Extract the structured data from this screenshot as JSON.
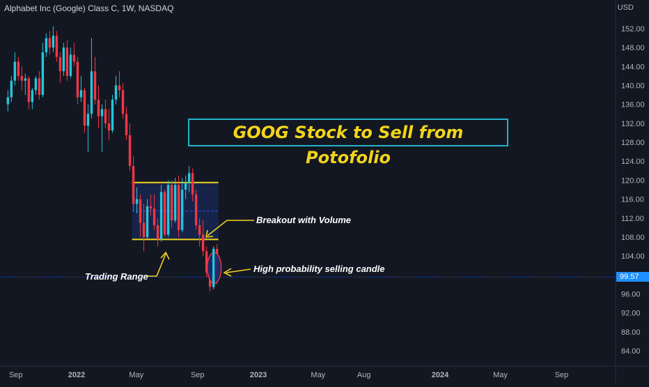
{
  "header": {
    "title": "Alphabet Inc (Google) Class C, 1W, NASDAQ",
    "currency": "USD"
  },
  "last_price_label": "99.57",
  "annotations": {
    "title": "GOOG Stock to Sell from Potofolio",
    "breakout": "Breakout with Volume",
    "selling_candle": "High probability selling candle",
    "range": "Trading Range"
  },
  "colors": {
    "background": "#131722",
    "up": "#26c6da",
    "down": "#f23645",
    "range_line": "#f2d41c",
    "range_fill": "#1a2a57",
    "arrow": "#f2d41c",
    "title_border": "#22b3c9",
    "title_text": "#f2d41c",
    "price_tag": "#1e90ff"
  },
  "chart_data": {
    "type": "candlestick",
    "title": "Alphabet Inc (Google) Class C, 1W, NASDAQ",
    "ylim": [
      80,
      156
    ],
    "y_ticks": [
      "152.00",
      "148.00",
      "144.00",
      "140.00",
      "136.00",
      "132.00",
      "128.00",
      "124.00",
      "120.00",
      "116.00",
      "112.00",
      "108.00",
      "104.00",
      "100.00",
      "96.00",
      "92.00",
      "88.00",
      "84.00"
    ],
    "y_tick_values": [
      152,
      148,
      144,
      140,
      136,
      132,
      128,
      124,
      120,
      116,
      112,
      108,
      104,
      100,
      96,
      92,
      88,
      84
    ],
    "x_ticks": [
      "Sep",
      "2022",
      "May",
      "Sep",
      "2023",
      "May",
      "Aug",
      "2024",
      "May",
      "Sep"
    ],
    "x_tick_dates": [
      "2021-09-01",
      "2022-01-01",
      "2022-05-01",
      "2022-09-01",
      "2023-01-01",
      "2023-05-01",
      "2023-08-01",
      "2024-01-01",
      "2024-05-01",
      "2024-09-01"
    ],
    "last_price": 99.57,
    "trading_range": {
      "high": 119.5,
      "low": 107.5,
      "mid": 113.5,
      "start": "2022-04-25",
      "end": "2022-10-10"
    },
    "candles": [
      {
        "date": "2021-08-16",
        "o": 136.0,
        "h": 139.0,
        "l": 134.5,
        "c": 137.5
      },
      {
        "date": "2021-08-23",
        "o": 137.5,
        "h": 142.0,
        "l": 136.5,
        "c": 141.0
      },
      {
        "date": "2021-08-30",
        "o": 141.0,
        "h": 147.0,
        "l": 140.0,
        "c": 145.0
      },
      {
        "date": "2021-09-06",
        "o": 145.0,
        "h": 146.0,
        "l": 141.0,
        "c": 142.0
      },
      {
        "date": "2021-09-13",
        "o": 142.0,
        "h": 144.0,
        "l": 139.0,
        "c": 141.0
      },
      {
        "date": "2021-09-20",
        "o": 141.0,
        "h": 142.5,
        "l": 138.0,
        "c": 141.5
      },
      {
        "date": "2021-09-27",
        "o": 141.5,
        "h": 142.0,
        "l": 135.0,
        "c": 136.5
      },
      {
        "date": "2021-10-04",
        "o": 136.5,
        "h": 139.5,
        "l": 135.0,
        "c": 139.0
      },
      {
        "date": "2021-10-11",
        "o": 139.0,
        "h": 142.0,
        "l": 138.0,
        "c": 141.5
      },
      {
        "date": "2021-10-18",
        "o": 141.5,
        "h": 143.0,
        "l": 137.0,
        "c": 138.0
      },
      {
        "date": "2021-10-25",
        "o": 138.0,
        "h": 149.0,
        "l": 137.5,
        "c": 147.0
      },
      {
        "date": "2021-11-01",
        "o": 147.0,
        "h": 151.0,
        "l": 146.0,
        "c": 150.0
      },
      {
        "date": "2021-11-08",
        "o": 150.0,
        "h": 151.5,
        "l": 146.5,
        "c": 148.0
      },
      {
        "date": "2021-11-15",
        "o": 148.0,
        "h": 152.5,
        "l": 147.0,
        "c": 150.5
      },
      {
        "date": "2021-11-22",
        "o": 150.5,
        "h": 151.5,
        "l": 145.0,
        "c": 146.0
      },
      {
        "date": "2021-11-29",
        "o": 146.0,
        "h": 147.0,
        "l": 140.5,
        "c": 143.0
      },
      {
        "date": "2021-12-06",
        "o": 143.0,
        "h": 149.0,
        "l": 142.0,
        "c": 148.0
      },
      {
        "date": "2021-12-13",
        "o": 148.0,
        "h": 149.5,
        "l": 141.0,
        "c": 142.0
      },
      {
        "date": "2021-12-20",
        "o": 142.0,
        "h": 148.0,
        "l": 141.5,
        "c": 146.5
      },
      {
        "date": "2021-12-27",
        "o": 146.5,
        "h": 149.0,
        "l": 144.0,
        "c": 145.0
      },
      {
        "date": "2022-01-03",
        "o": 145.0,
        "h": 146.0,
        "l": 136.0,
        "c": 137.5
      },
      {
        "date": "2022-01-10",
        "o": 137.5,
        "h": 142.0,
        "l": 136.5,
        "c": 139.0
      },
      {
        "date": "2022-01-17",
        "o": 139.0,
        "h": 139.5,
        "l": 130.0,
        "c": 131.5
      },
      {
        "date": "2022-01-24",
        "o": 131.5,
        "h": 136.0,
        "l": 126.0,
        "c": 134.0
      },
      {
        "date": "2022-01-31",
        "o": 134.0,
        "h": 150.0,
        "l": 133.0,
        "c": 143.0
      },
      {
        "date": "2022-02-07",
        "o": 143.0,
        "h": 146.0,
        "l": 136.0,
        "c": 137.0
      },
      {
        "date": "2022-02-14",
        "o": 137.0,
        "h": 140.0,
        "l": 131.0,
        "c": 133.5
      },
      {
        "date": "2022-02-21",
        "o": 133.5,
        "h": 136.0,
        "l": 126.0,
        "c": 135.0
      },
      {
        "date": "2022-02-28",
        "o": 135.0,
        "h": 137.0,
        "l": 131.0,
        "c": 132.0
      },
      {
        "date": "2022-03-07",
        "o": 132.0,
        "h": 135.0,
        "l": 128.5,
        "c": 130.5
      },
      {
        "date": "2022-03-14",
        "o": 130.5,
        "h": 138.0,
        "l": 130.0,
        "c": 137.0
      },
      {
        "date": "2022-03-21",
        "o": 137.0,
        "h": 142.0,
        "l": 136.0,
        "c": 140.0
      },
      {
        "date": "2022-03-28",
        "o": 140.0,
        "h": 143.0,
        "l": 137.5,
        "c": 139.0
      },
      {
        "date": "2022-04-04",
        "o": 139.0,
        "h": 140.5,
        "l": 133.0,
        "c": 134.0
      },
      {
        "date": "2022-04-11",
        "o": 134.0,
        "h": 135.5,
        "l": 128.5,
        "c": 129.5
      },
      {
        "date": "2022-04-18",
        "o": 129.5,
        "h": 132.0,
        "l": 122.0,
        "c": 123.0
      },
      {
        "date": "2022-04-25",
        "o": 123.0,
        "h": 125.0,
        "l": 113.5,
        "c": 115.0
      },
      {
        "date": "2022-05-02",
        "o": 115.0,
        "h": 118.5,
        "l": 113.0,
        "c": 116.0
      },
      {
        "date": "2022-05-09",
        "o": 116.0,
        "h": 117.0,
        "l": 108.0,
        "c": 111.0
      },
      {
        "date": "2022-05-16",
        "o": 111.0,
        "h": 115.0,
        "l": 105.0,
        "c": 108.0
      },
      {
        "date": "2022-05-23",
        "o": 108.0,
        "h": 116.0,
        "l": 107.5,
        "c": 114.5
      },
      {
        "date": "2022-05-30",
        "o": 114.5,
        "h": 117.0,
        "l": 112.5,
        "c": 114.0
      },
      {
        "date": "2022-06-06",
        "o": 114.0,
        "h": 117.0,
        "l": 109.5,
        "c": 110.5
      },
      {
        "date": "2022-06-13",
        "o": 110.5,
        "h": 112.0,
        "l": 106.0,
        "c": 107.5
      },
      {
        "date": "2022-06-20",
        "o": 107.5,
        "h": 119.0,
        "l": 107.0,
        "c": 117.5
      },
      {
        "date": "2022-06-27",
        "o": 117.5,
        "h": 118.0,
        "l": 108.0,
        "c": 108.5
      },
      {
        "date": "2022-07-04",
        "o": 108.5,
        "h": 120.0,
        "l": 108.0,
        "c": 119.0
      },
      {
        "date": "2022-07-11",
        "o": 119.0,
        "h": 120.0,
        "l": 110.0,
        "c": 111.5
      },
      {
        "date": "2022-07-18",
        "o": 111.5,
        "h": 120.5,
        "l": 111.0,
        "c": 119.0
      },
      {
        "date": "2022-07-25",
        "o": 119.0,
        "h": 121.0,
        "l": 108.0,
        "c": 109.5
      },
      {
        "date": "2022-08-01",
        "o": 109.5,
        "h": 120.5,
        "l": 109.0,
        "c": 118.0
      },
      {
        "date": "2022-08-08",
        "o": 118.0,
        "h": 121.0,
        "l": 116.0,
        "c": 119.5
      },
      {
        "date": "2022-08-15",
        "o": 119.5,
        "h": 123.0,
        "l": 117.5,
        "c": 121.5
      },
      {
        "date": "2022-08-22",
        "o": 121.5,
        "h": 122.5,
        "l": 115.5,
        "c": 117.0
      },
      {
        "date": "2022-08-29",
        "o": 117.0,
        "h": 118.0,
        "l": 109.5,
        "c": 110.5
      },
      {
        "date": "2022-09-05",
        "o": 110.5,
        "h": 112.0,
        "l": 106.0,
        "c": 108.5
      },
      {
        "date": "2022-09-12",
        "o": 108.5,
        "h": 111.5,
        "l": 104.0,
        "c": 105.0
      },
      {
        "date": "2022-09-19",
        "o": 105.0,
        "h": 106.0,
        "l": 99.5,
        "c": 100.5
      },
      {
        "date": "2022-09-26",
        "o": 100.5,
        "h": 102.0,
        "l": 96.5,
        "c": 97.5
      },
      {
        "date": "2022-10-03",
        "o": 97.5,
        "h": 106.0,
        "l": 97.0,
        "c": 105.5
      },
      {
        "date": "2022-10-10",
        "o": 105.5,
        "h": 106.5,
        "l": 98.0,
        "c": 99.57
      }
    ]
  }
}
